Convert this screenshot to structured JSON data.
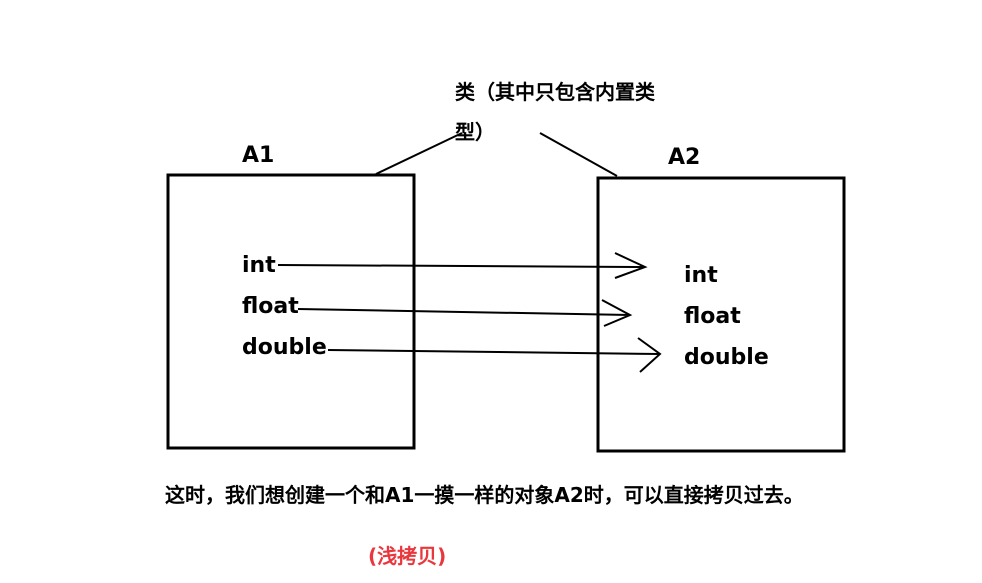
{
  "diagram": {
    "class_label": "类（其中只包含内置类型）",
    "boxes": [
      {
        "name": "A1",
        "fields": [
          "int",
          "float",
          "double"
        ]
      },
      {
        "name": "A2",
        "fields": [
          "int",
          "float",
          "double"
        ]
      }
    ],
    "caption": "这时，我们想创建一个和A1一摸一样的对象A2时，可以直接拷贝过去。",
    "note": "(浅拷贝)"
  }
}
